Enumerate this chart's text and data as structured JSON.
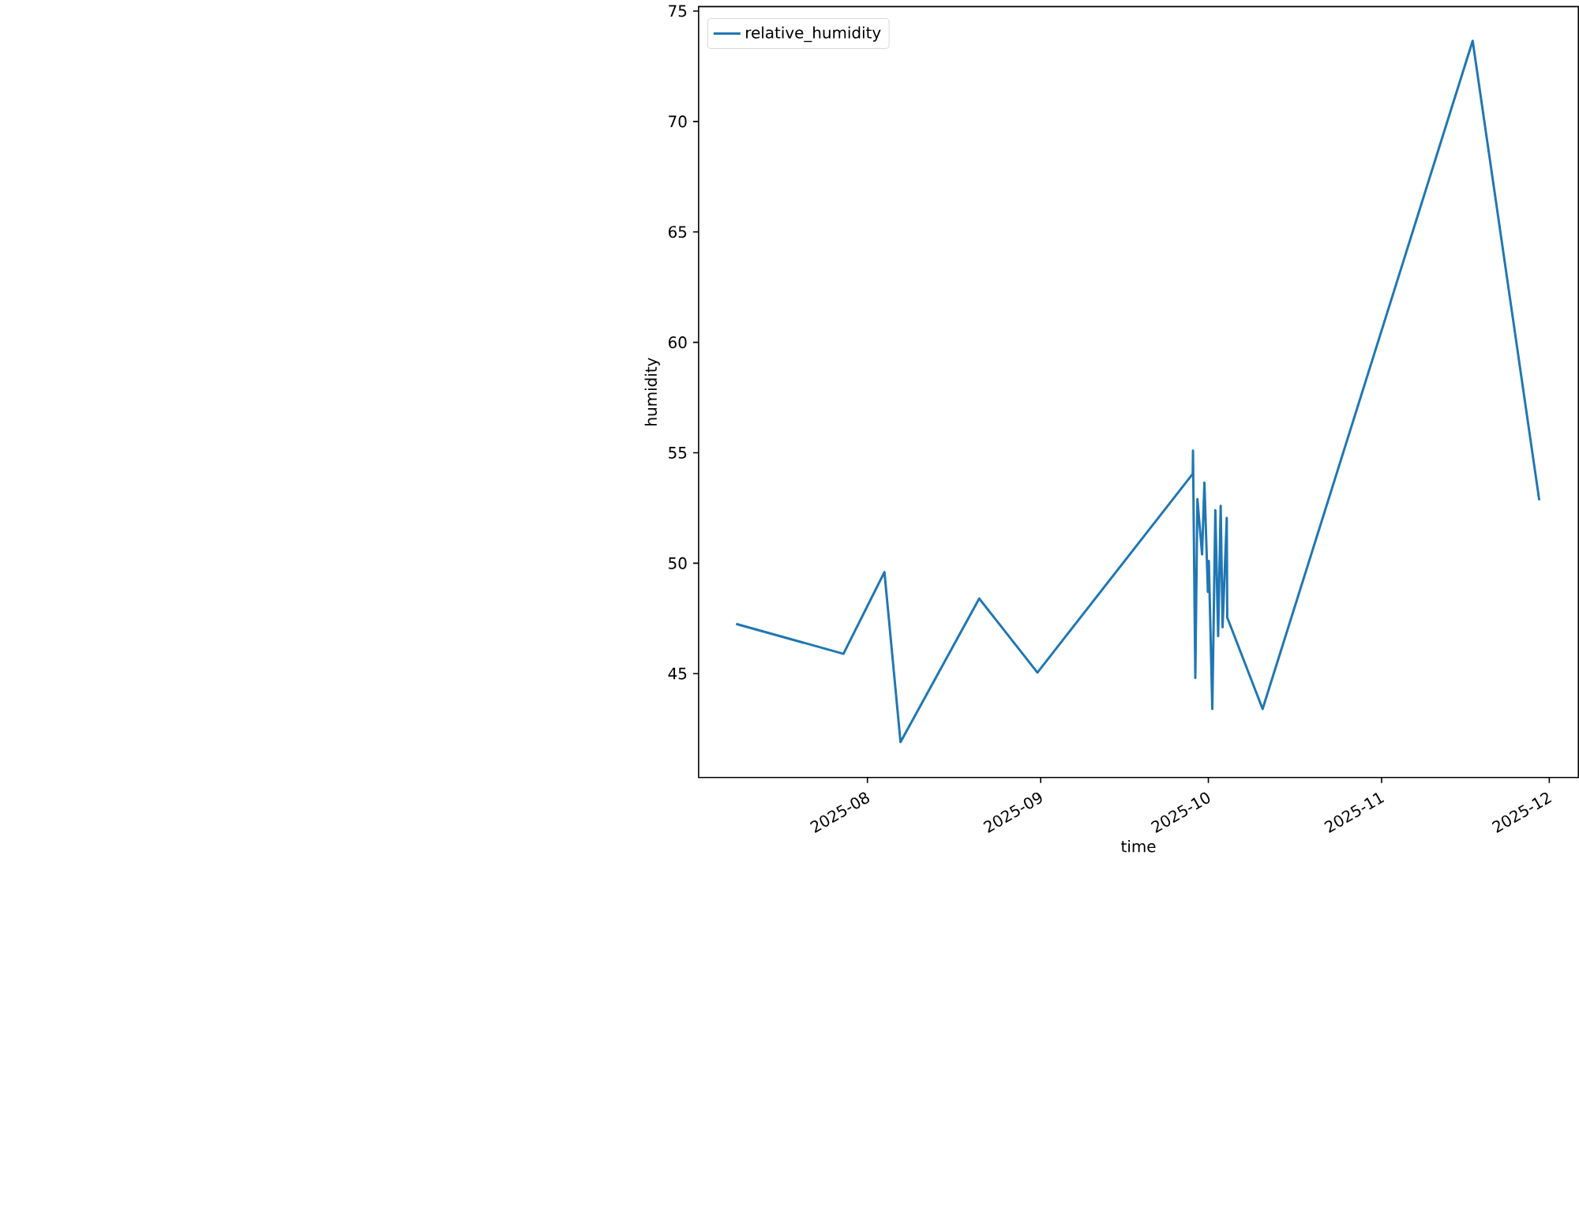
{
  "chart_data": {
    "type": "line",
    "xlabel": "time",
    "ylabel": "humidity",
    "x": [
      "2025-07-08T12:00",
      "2025-07-27T17:00",
      "2025-08-04T01:00",
      "2025-08-06T22:00",
      "2025-08-21T00:00",
      "2025-08-31T10:00",
      "2025-09-28T05:00",
      "2025-09-28T06:00",
      "2025-09-28T16:00",
      "2025-09-29T01:00",
      "2025-09-29T21:00",
      "2025-09-30T07:00",
      "2025-09-30T22:00",
      "2025-10-01T02:00",
      "2025-10-01T17:00",
      "2025-10-02T06:00",
      "2025-10-02T18:00",
      "2025-10-03T05:00",
      "2025-10-03T13:00",
      "2025-10-04T07:00",
      "2025-10-04T09:00",
      "2025-10-10T17:00",
      "2025-11-17T07:00",
      "2025-11-29T05:00"
    ],
    "series": [
      {
        "name": "relative_humidity",
        "color": "#1f77b4",
        "values": [
          47.25,
          45.9,
          49.6,
          41.9,
          48.4,
          45.05,
          54.05,
          55.1,
          44.8,
          52.9,
          50.4,
          53.65,
          48.7,
          50.1,
          43.4,
          52.4,
          46.7,
          52.6,
          47.1,
          52.05,
          47.55,
          43.4,
          73.65,
          52.85
        ]
      }
    ],
    "xlim": [
      "2025-07-01T19:00",
      "2025-12-06T05:00"
    ],
    "ylim": [
      40.3,
      75.2
    ],
    "xticks": [
      {
        "value": "2025-08-01",
        "label": "2025-08"
      },
      {
        "value": "2025-09-01",
        "label": "2025-09"
      },
      {
        "value": "2025-10-01",
        "label": "2025-10"
      },
      {
        "value": "2025-11-01",
        "label": "2025-11"
      },
      {
        "value": "2025-12-01",
        "label": "2025-12"
      }
    ],
    "yticks": [
      45,
      50,
      55,
      60,
      65,
      70,
      75
    ],
    "legend": "top left"
  }
}
